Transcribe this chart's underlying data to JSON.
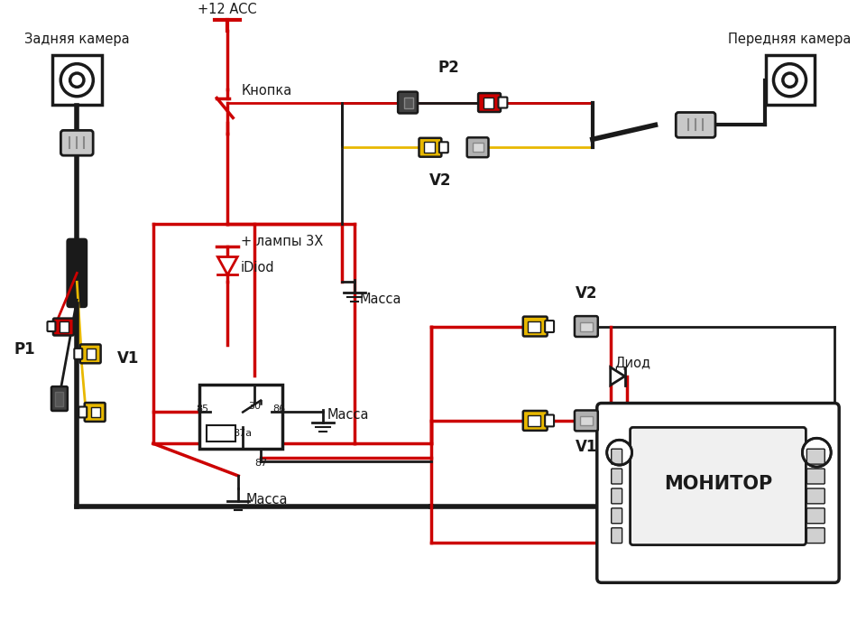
{
  "bg_color": "#ffffff",
  "black": "#1a1a1a",
  "red": "#cc0000",
  "yellow": "#e8b800",
  "gray": "#b0b0b0",
  "darkgray": "#404040",
  "labels": {
    "rear_camera": "Задняя камера",
    "front_camera": "Передняя камера",
    "plus12acc": "+12 ACC",
    "knopka": "Кнопка",
    "plus_lampy": "+ лампы 3Х",
    "idiod": "iDiod",
    "massa1": "Масса",
    "massa2": "Масса",
    "massa3": "Масса",
    "p1": "P1",
    "p2": "P2",
    "v1_left": "V1",
    "v2_top": "V2",
    "v2_right": "V2",
    "v1_right": "V1",
    "monitor": "МОНИТОР",
    "diod": "Диод",
    "r30": "30",
    "r85": "85",
    "r87a": "87a",
    "r86": "86",
    "r87": "87"
  }
}
